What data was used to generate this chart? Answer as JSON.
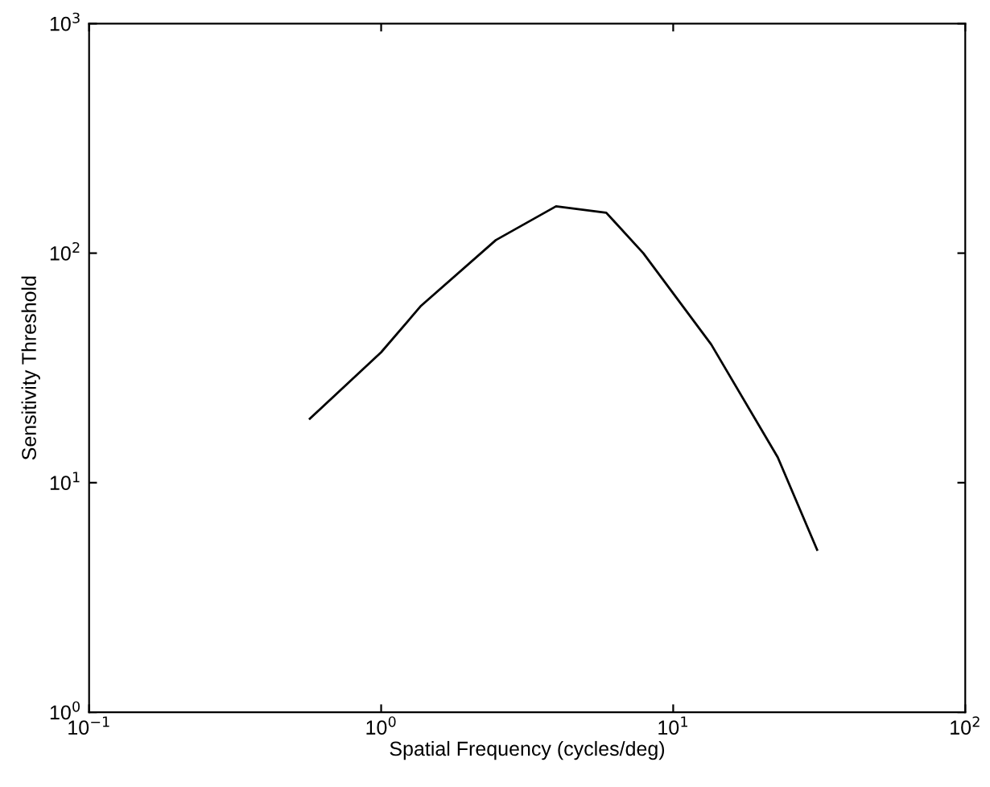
{
  "chart_data": {
    "type": "line",
    "xlabel": "Spatial Frequency (cycles/deg)",
    "ylabel": "Sensitivity Threshold",
    "log": "xy",
    "grid": false,
    "legend": false,
    "marker": "none",
    "line_style": "solid",
    "x": [
      0.57,
      1.0,
      1.37,
      2.47,
      3.97,
      5.9,
      7.9,
      13.5,
      22.8,
      31.1
    ],
    "series": [
      {
        "color": "#000000",
        "values": [
          19,
          37,
          59,
          114,
          160,
          150,
          100,
          40,
          12.9,
          5.1
        ]
      }
    ],
    "xlim": [
      0.1,
      100
    ],
    "ylim": [
      1,
      1000
    ],
    "xticks": [
      {
        "value": 0.1,
        "label": "10$^{−1}$"
      },
      {
        "value": 1,
        "label": "10$^{0}$"
      },
      {
        "value": 10,
        "label": "10$^{1}$"
      },
      {
        "value": 100,
        "label": "10$^{2}$"
      }
    ],
    "yticks": [
      {
        "value": 1,
        "label": "10$^{0}$"
      },
      {
        "value": 10,
        "label": "10$^{1}$"
      },
      {
        "value": 100,
        "label": "10$^{2}$"
      },
      {
        "value": 1000,
        "label": "10$^{3}$"
      }
    ]
  }
}
